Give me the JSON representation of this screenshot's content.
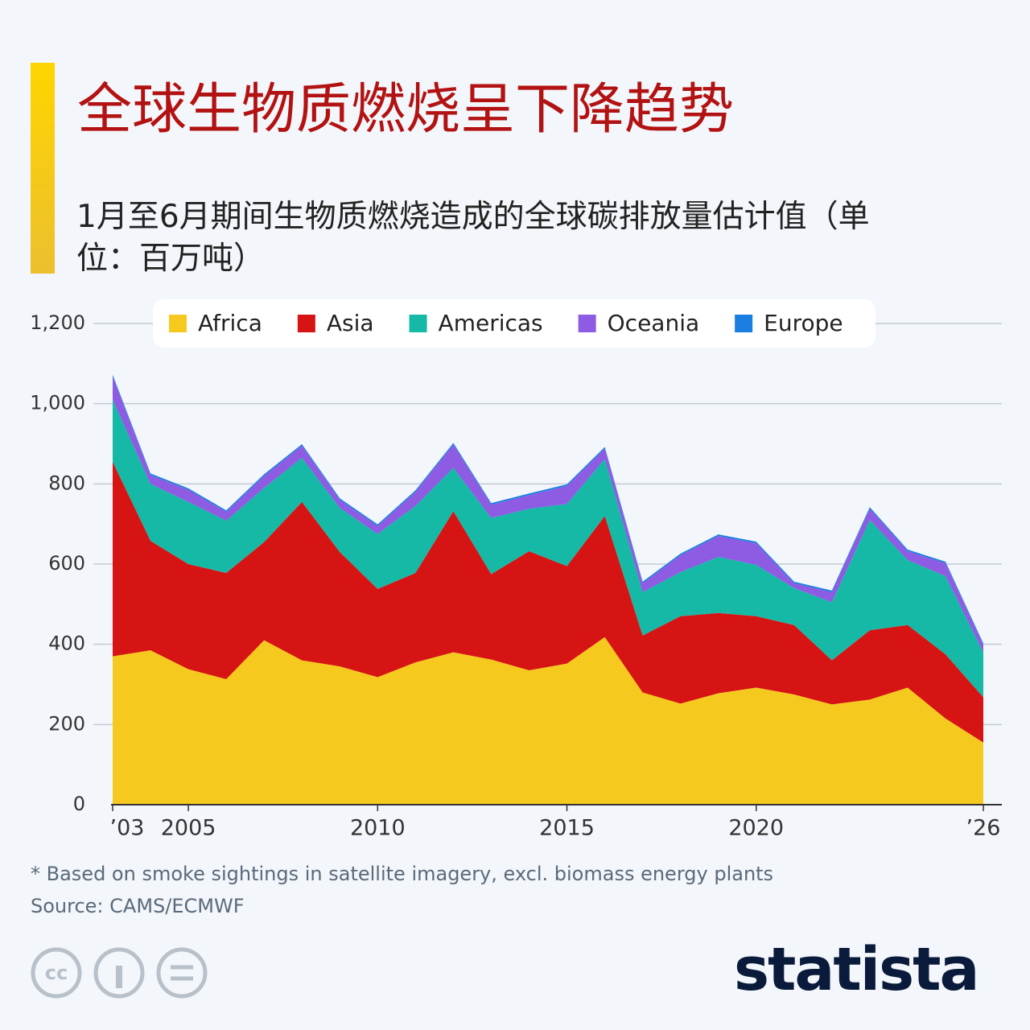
{
  "chart_data": {
    "type": "stacked_area",
    "title": "全球生物质燃烧呈下降趋势",
    "subtitle": "1月至6月期间生物质燃烧造成的全球碳排放量估计值（单位：百万吨）",
    "x": [
      2003,
      2004,
      2005,
      2006,
      2007,
      2008,
      2009,
      2010,
      2011,
      2012,
      2013,
      2014,
      2015,
      2016,
      2017,
      2018,
      2019,
      2020,
      2021,
      2022,
      2023,
      2024,
      2025,
      2026
    ],
    "series": [
      {
        "name": "Africa",
        "color": "#f6c91e",
        "values": [
          370,
          385,
          338,
          313,
          410,
          360,
          345,
          318,
          355,
          380,
          362,
          335,
          352,
          418,
          280,
          252,
          278,
          292,
          275,
          250,
          262,
          292,
          215,
          155
        ]
      },
      {
        "name": "Asia",
        "color": "#d71414",
        "values": [
          485,
          273,
          262,
          265,
          245,
          395,
          285,
          220,
          223,
          352,
          213,
          297,
          243,
          302,
          142,
          218,
          200,
          178,
          173,
          110,
          173,
          156,
          160,
          113
        ]
      },
      {
        "name": "Americas",
        "color": "#16b8a6",
        "values": [
          155,
          142,
          155,
          130,
          135,
          110,
          110,
          137,
          167,
          108,
          140,
          106,
          155,
          142,
          108,
          110,
          140,
          128,
          92,
          145,
          275,
          162,
          195,
          112
        ]
      },
      {
        "name": "Oceania",
        "color": "#8e5be3",
        "values": [
          58,
          22,
          30,
          22,
          30,
          30,
          20,
          20,
          35,
          58,
          33,
          34,
          45,
          26,
          22,
          42,
          52,
          54,
          12,
          25,
          28,
          22,
          32,
          18
        ]
      },
      {
        "name": "Europe",
        "color": "#1a7fe0",
        "values": [
          4,
          4,
          4,
          4,
          4,
          4,
          4,
          4,
          4,
          4,
          4,
          4,
          4,
          4,
          4,
          4,
          4,
          4,
          4,
          4,
          4,
          4,
          4,
          4
        ]
      }
    ],
    "xlim": [
      2003,
      2026
    ],
    "xticks": [
      {
        "value": 2003,
        "label": "’03"
      },
      2005,
      2010,
      2015,
      2020,
      {
        "value": 2026,
        "label": "’26"
      }
    ],
    "ylim": [
      0,
      1200
    ],
    "yticks": [
      0,
      200,
      400,
      600,
      800,
      {
        "value": 1000,
        "label": "1,000"
      },
      {
        "value": 1200,
        "label": "1,200"
      }
    ],
    "grid": true,
    "legend": "top",
    "footnote": "* Based on smoke sightings in satellite imagery, excl. biomass energy plants",
    "source": "Source: CAMS/ECMWF",
    "brand": "statista"
  }
}
